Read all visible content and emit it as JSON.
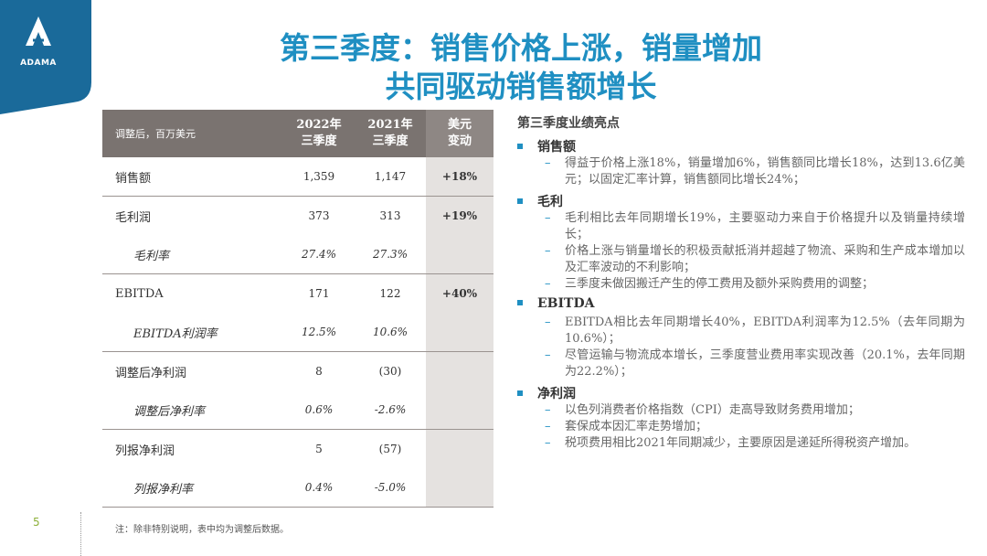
{
  "brand": {
    "logo_text": "ADAMA",
    "accent": "#1f8fc2",
    "logo_bg": "#1a6a9a"
  },
  "title": {
    "line1": "第三季度：销售价格上涨，销量增加",
    "line2": "共同驱动销售额增长"
  },
  "table": {
    "header": {
      "unit": "调整后，百万美元",
      "col1": [
        "2022年",
        "三季度"
      ],
      "col2": [
        "2021年",
        "三季度"
      ],
      "col3": [
        "美元",
        "变动"
      ]
    },
    "rows": [
      {
        "label": "销售额",
        "v2022": "1,359",
        "v2021": "1,147",
        "change": "+18%"
      },
      {
        "label": "毛利润",
        "v2022": "373",
        "v2021": "313",
        "change": "+19%"
      },
      {
        "label": "毛利率",
        "v2022": "27.4%",
        "v2021": "27.3%",
        "change": ""
      },
      {
        "label": "EBITDA",
        "v2022": "171",
        "v2021": "122",
        "change": "+40%"
      },
      {
        "label": "EBITDA利润率",
        "v2022": "12.5%",
        "v2021": "10.6%",
        "change": ""
      },
      {
        "label": "调整后净利润",
        "v2022": "8",
        "v2021": "(30)",
        "change": ""
      },
      {
        "label": "调整后净利率",
        "v2022": "0.6%",
        "v2021": "-2.6%",
        "change": ""
      },
      {
        "label": "列报净利润",
        "v2022": "5",
        "v2021": "(57)",
        "change": ""
      },
      {
        "label": "列报净利率",
        "v2022": "0.4%",
        "v2021": "-5.0%",
        "change": ""
      }
    ]
  },
  "highlights": {
    "title": "第三季度业绩亮点",
    "sections": [
      {
        "head": "销售额",
        "items": [
          "得益于价格上涨18%，销量增加6%，销售额同比增长18%，达到13.6亿美元；以固定汇率计算，销售额同比增长24%；"
        ]
      },
      {
        "head": "毛利",
        "items": [
          "毛利相比去年同期增长19%，主要驱动力来自于价格提升以及销量持续增长；",
          "价格上涨与销量增长的积极贡献抵消并超越了物流、采购和生产成本增加以及汇率波动的不利影响；",
          "三季度未做因搬迁产生的停工费用及额外采购费用的调整；"
        ]
      },
      {
        "head": "EBITDA",
        "items": [
          "EBITDA相比去年同期增长40%，EBITDA利润率为12.5%（去年同期为10.6%）；",
          "尽管运输与物流成本增长，三季度营业费用率实现改善（20.1%，去年同期为22.2%）；"
        ]
      },
      {
        "head": "净利润",
        "items": [
          "以色列消费者价格指数（CPI）走高导致财务费用增加；",
          "套保成本因汇率走势增加；",
          "税项费用相比2021年同期减少，主要原因是递延所得税资产增加。"
        ]
      }
    ]
  },
  "footer": {
    "page": "5",
    "note": "注：除非特别说明，表中均为调整后数据。"
  }
}
